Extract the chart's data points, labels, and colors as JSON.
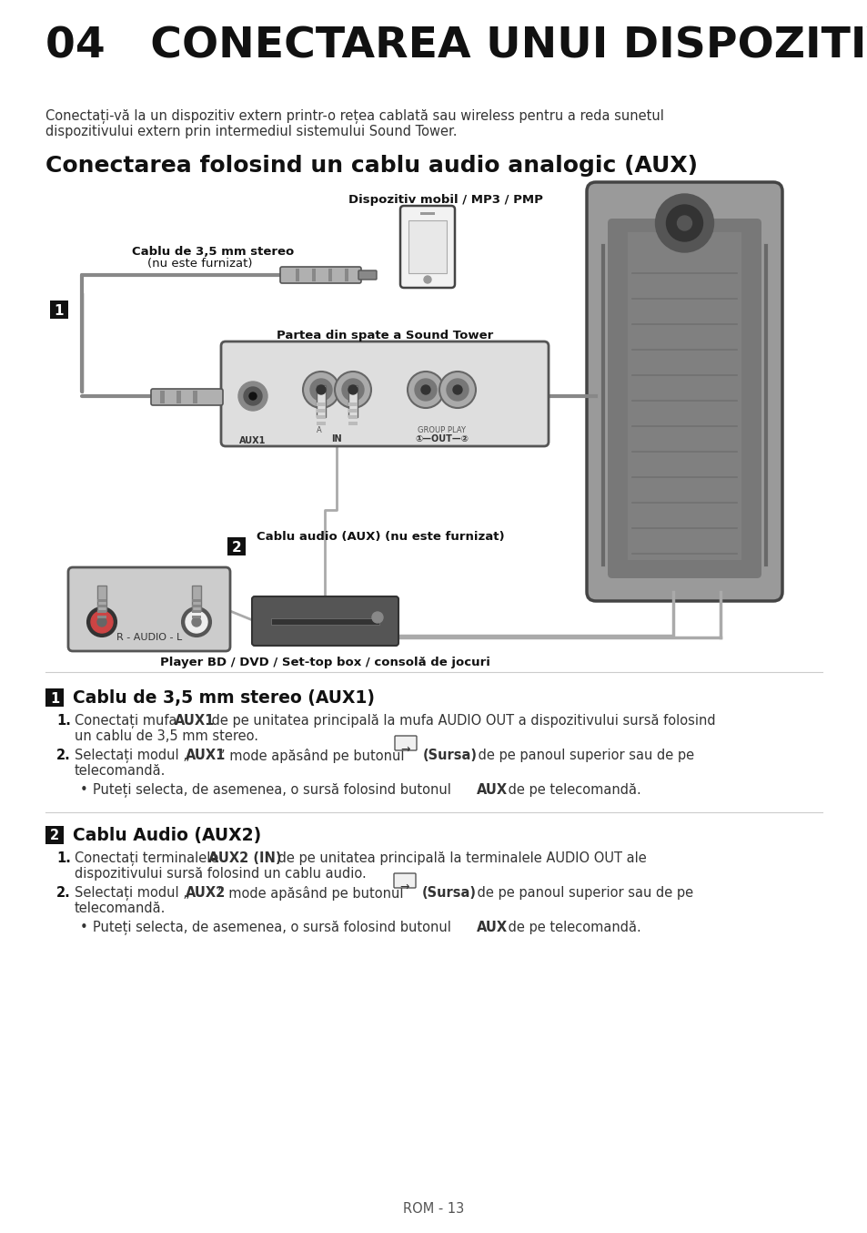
{
  "bg_color": "#ffffff",
  "title_number": "04",
  "title_text": "CONECTAREA UNUI DISPOZITIV EXTERN",
  "subtitle": "Conectarea folosind un cablu audio analogic (AUX)",
  "intro_line1": "Conectați-vă la un dispozitiv extern printr-o rețea cablată sau wireless pentru a reda sunetul",
  "intro_line2": "dispozitivului extern prin intermediul sistemului Sound Tower.",
  "diagram_label_mobile": "Dispozitiv mobil / MP3 / PMP",
  "diagram_label_cable35_1": "Cablu de 3,5 mm stereo",
  "diagram_label_cable35_2": "(nu este furnizat)",
  "diagram_label_back": "Partea din spate a Sound Tower",
  "diagram_label_aux": "Cablu audio (AUX) (nu este furnizat)",
  "diagram_label_player": "Player BD / DVD / Set-top box / consolă de jocuri",
  "section1_title": "Cablu de 3,5 mm stereo (AUX1)",
  "section2_title": "Cablu Audio (AUX2)",
  "footer": "ROM - 13"
}
